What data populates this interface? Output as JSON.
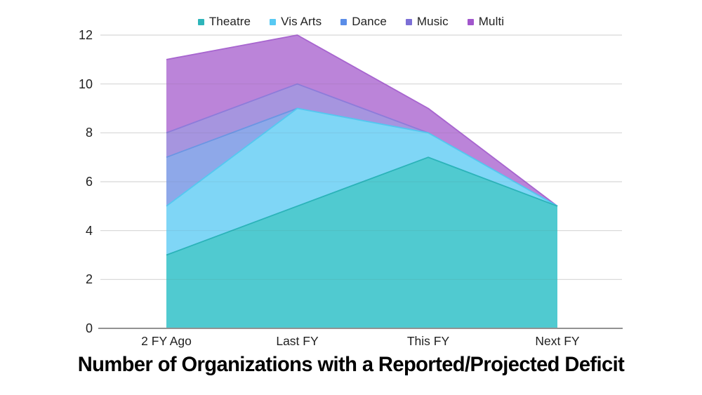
{
  "title": "Number of Organizations with a Reported/Projected Deficit",
  "legend": {
    "position": "top",
    "items": [
      "Theatre",
      "Vis Arts",
      "Dance",
      "Music",
      "Multi"
    ]
  },
  "axis": {
    "grid_color": "#e4e4e4",
    "overlay_grid_color": "rgba(90,90,90,0.10)",
    "axis_line_color": "#929292",
    "label_color": "#1f1f1f"
  },
  "chart_data": {
    "type": "area",
    "overlapping": true,
    "title": "Number of Organizations with a Reported/Projected Deficit",
    "xlabel": "",
    "ylabel": "",
    "categories": [
      "2 FY Ago",
      "Last FY",
      "This FY",
      "Next FY"
    ],
    "series": [
      {
        "name": "Theatre",
        "values": [
          3,
          5,
          7,
          5
        ],
        "fill": "#4ec9ce",
        "stroke": "#2bb3b9",
        "swatch": "#2eb5ba"
      },
      {
        "name": "Vis Arts",
        "values": [
          5,
          9,
          8,
          5
        ],
        "fill": "#7ed7f6",
        "stroke": "#55c8f0",
        "swatch": "#58c9f3"
      },
      {
        "name": "Dance",
        "values": [
          7,
          9,
          8,
          5
        ],
        "fill": "#8ca9e9",
        "stroke": "#6b96e3",
        "swatch": "#5a8de8"
      },
      {
        "name": "Music",
        "values": [
          8,
          10,
          8,
          5
        ],
        "fill": "#a496df",
        "stroke": "#8d7cda",
        "swatch": "#7c6fd6"
      },
      {
        "name": "Multi",
        "values": [
          11,
          12,
          9,
          5
        ],
        "fill": "#b87fd7",
        "stroke": "#a765cf",
        "swatch": "#a156cc"
      }
    ],
    "z_order": [
      "Multi",
      "Music",
      "Dance",
      "Vis Arts",
      "Theatre"
    ],
    "ylim": [
      0,
      12
    ],
    "yticks": [
      0,
      2,
      4,
      6,
      8,
      10,
      12
    ],
    "grid": true,
    "legend_position": "top"
  }
}
